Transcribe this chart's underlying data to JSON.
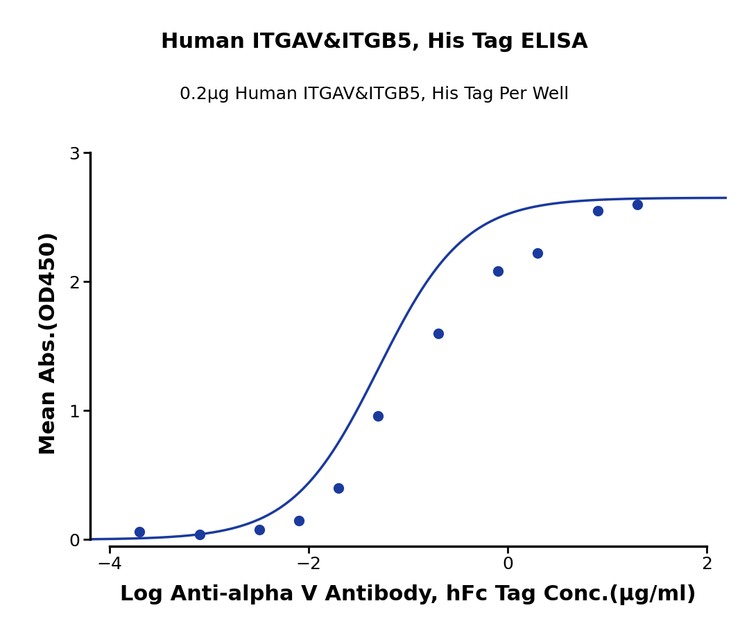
{
  "title": "Human ITGAV&ITGB5, His Tag ELISA",
  "subtitle": "0.2μg Human ITGAV&ITGB5, His Tag Per Well",
  "xlabel": "Log Anti-alpha V Antibody, hFc Tag Conc.(μg/ml)",
  "ylabel": "Mean Abs.(OD450)",
  "x_data": [
    -3.699,
    -3.097,
    -2.495,
    -2.097,
    -1.699,
    -1.301,
    -0.699,
    -0.097,
    0.301,
    0.903,
    1.301
  ],
  "y_data": [
    0.06,
    0.04,
    0.08,
    0.15,
    0.4,
    0.96,
    1.6,
    2.08,
    2.22,
    2.55,
    2.6
  ],
  "xlim": [
    -4.2,
    2.2
  ],
  "ylim": [
    -0.05,
    3.1
  ],
  "xticks": [
    -4,
    -2,
    0,
    2
  ],
  "yticks": [
    0,
    1,
    2,
    3
  ],
  "curve_color": "#1a3a9e",
  "dot_color": "#1a3a9e",
  "title_fontsize": 22,
  "subtitle_fontsize": 18,
  "label_fontsize": 22,
  "tick_fontsize": 18,
  "dot_size": 100,
  "line_width": 2.5,
  "background_color": "#ffffff"
}
